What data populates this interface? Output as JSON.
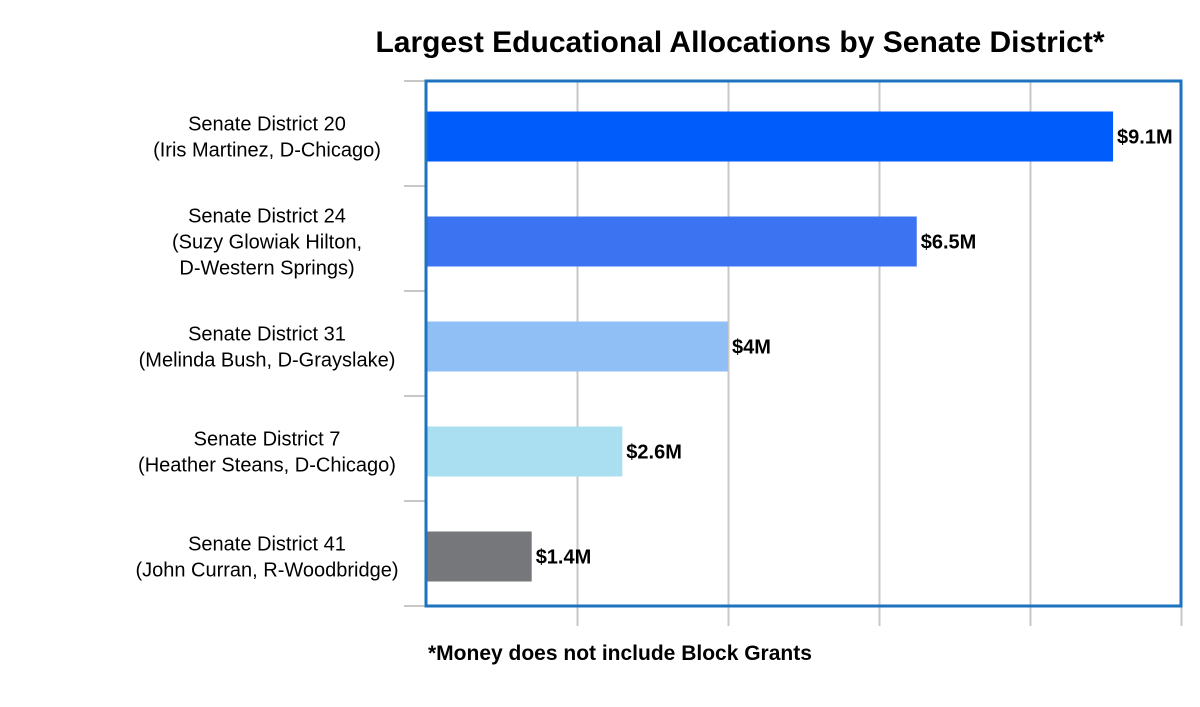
{
  "chart_data": {
    "type": "bar",
    "orientation": "horizontal",
    "title": "Largest Educational Allocations by Senate District*",
    "xlabel": "",
    "ylabel": "",
    "xlim": [
      0,
      10
    ],
    "grid": true,
    "categories": [
      [
        "Senate District 20",
        "(Iris Martinez, D-Chicago)"
      ],
      [
        "Senate District 24",
        "(Suzy Glowiak Hilton,",
        "D-Western Springs)"
      ],
      [
        "Senate District 31",
        "(Melinda Bush, D-Grayslake)"
      ],
      [
        "Senate District 7",
        "(Heather Steans, D-Chicago)"
      ],
      [
        "Senate District 41",
        "(John Curran, R-Woodbridge)"
      ]
    ],
    "values": [
      9.1,
      6.5,
      4.0,
      2.6,
      1.4
    ],
    "value_labels": [
      "$9.1M",
      "$6.5M",
      "$4M",
      "$2.6M",
      "$1.4M"
    ],
    "units": "million dollars",
    "colors": [
      "#005cfa",
      "#3c73f0",
      "#8fbff5",
      "#aadff2",
      "#75777b"
    ],
    "frame_color": "#1e73be",
    "grid_color": "#c8c8c8"
  },
  "footnote": "*Money does not include Block Grants"
}
